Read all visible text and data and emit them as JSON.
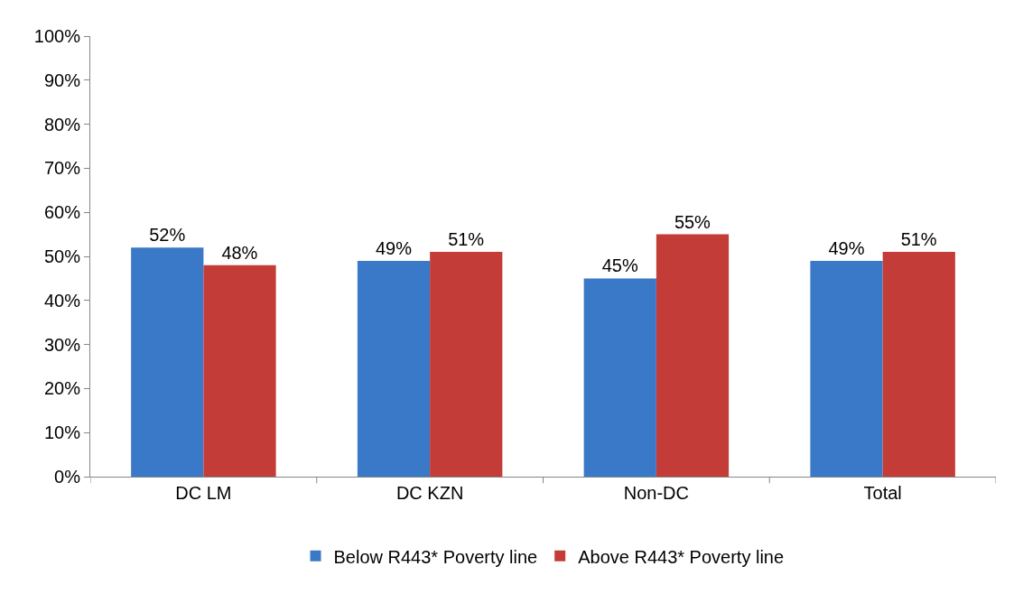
{
  "chart_data": {
    "type": "bar",
    "categories": [
      "DC LM",
      "DC KZN",
      "Non-DC",
      "Total"
    ],
    "series": [
      {
        "name": "Below R443* Poverty line",
        "color": "#3a78c8",
        "values": [
          52,
          49,
          45,
          49
        ],
        "value_labels": [
          "52%",
          "49%",
          "45%",
          "49%"
        ]
      },
      {
        "name": "Above R443* Poverty line",
        "color": "#c43c38",
        "values": [
          48,
          51,
          55,
          51
        ],
        "value_labels": [
          "48%",
          "51%",
          "55%",
          "51%"
        ]
      }
    ],
    "ylim": [
      0,
      100
    ],
    "yticks": [
      {
        "value": 0,
        "label": "0%"
      },
      {
        "value": 10,
        "label": "10%"
      },
      {
        "value": 20,
        "label": "20%"
      },
      {
        "value": 30,
        "label": "30%"
      },
      {
        "value": 40,
        "label": "40%"
      },
      {
        "value": 50,
        "label": "50%"
      },
      {
        "value": 60,
        "label": "60%"
      },
      {
        "value": 70,
        "label": "70%"
      },
      {
        "value": 80,
        "label": "80%"
      },
      {
        "value": 90,
        "label": "90%"
      },
      {
        "value": 100,
        "label": "100%"
      }
    ],
    "legend": "bottom"
  }
}
